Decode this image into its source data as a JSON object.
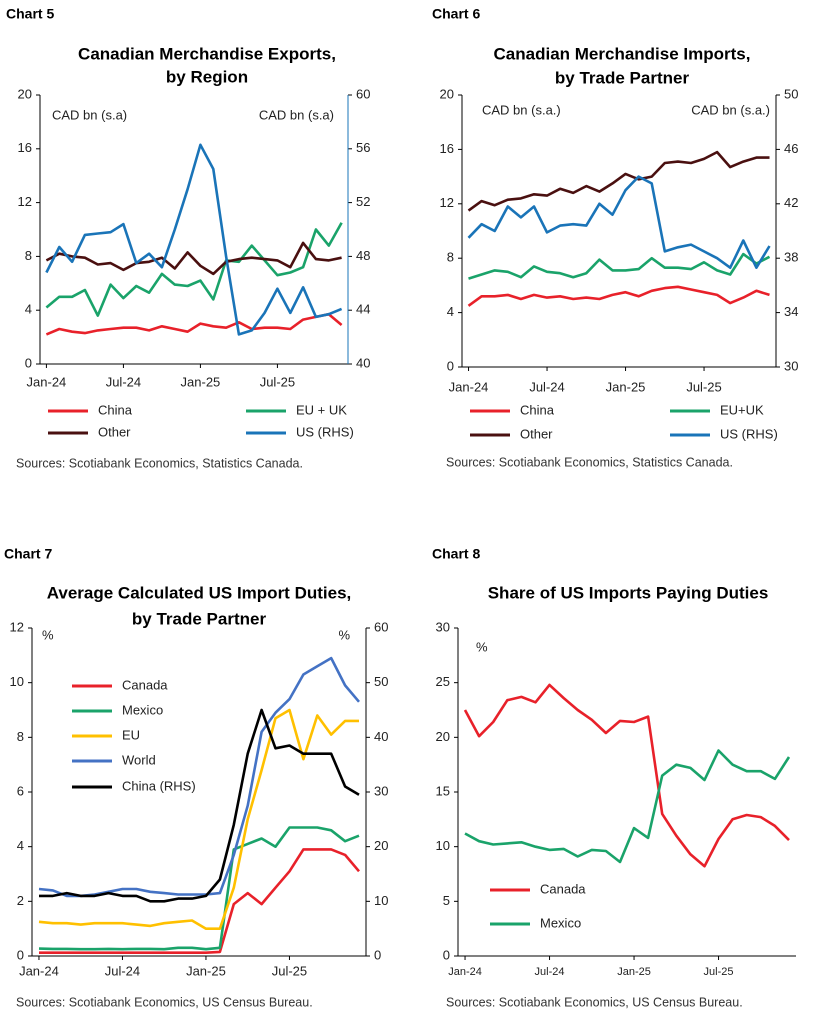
{
  "chart_data": [
    {
      "type": "line",
      "label": "Chart 5",
      "title": [
        "Canadian Merchandise Exports,",
        "by Region"
      ],
      "y_label": "CAD bn (s.a)",
      "y2_label": "CAD bn (s.a)",
      "categories": [
        "Jan-24",
        null,
        null,
        null,
        null,
        null,
        "Jul-24",
        null,
        null,
        null,
        null,
        null,
        "Jan-25",
        null,
        null,
        null,
        null,
        null,
        "Jul-25",
        null,
        null,
        null,
        null,
        null
      ],
      "ylim": [
        0,
        20
      ],
      "yticks": [
        0,
        4,
        8,
        12,
        16,
        20
      ],
      "y2lim": [
        40,
        60
      ],
      "y2ticks": [
        40,
        44,
        48,
        52,
        56,
        60
      ],
      "series": [
        {
          "name": "China",
          "color": "#e8212a",
          "values": [
            2.2,
            2.6,
            2.4,
            2.3,
            2.5,
            2.6,
            2.7,
            2.7,
            2.5,
            2.8,
            2.6,
            2.4,
            3.0,
            2.8,
            2.7,
            3.1,
            2.6,
            2.7,
            2.7,
            2.6,
            3.3,
            3.5,
            3.7,
            2.9
          ]
        },
        {
          "name": "EU + UK",
          "color": "#1aa36a",
          "values": [
            4.2,
            5.0,
            5.0,
            5.5,
            3.6,
            5.9,
            4.9,
            5.8,
            5.3,
            6.7,
            5.9,
            5.8,
            6.2,
            4.8,
            7.7,
            7.6,
            8.8,
            7.7,
            6.6,
            6.8,
            7.2,
            10.0,
            8.8,
            10.5
          ]
        },
        {
          "name": "Other",
          "color": "#4a1010",
          "values": [
            7.7,
            8.2,
            8.0,
            7.9,
            7.4,
            7.5,
            7.0,
            7.5,
            7.6,
            7.9,
            7.1,
            8.3,
            7.3,
            6.7,
            7.6,
            7.8,
            7.9,
            7.8,
            7.7,
            7.2,
            9.0,
            7.8,
            7.7,
            7.9
          ]
        },
        {
          "name": "US (RHS)",
          "color": "#1a74b8",
          "axis": "y2",
          "values": [
            46.8,
            48.7,
            47.6,
            49.6,
            49.7,
            49.8,
            50.4,
            47.5,
            48.2,
            47.2,
            50.0,
            53.0,
            56.3,
            54.5,
            48.0,
            42.2,
            42.5,
            43.8,
            45.6,
            43.8,
            45.7,
            43.5,
            43.7,
            44.1
          ]
        }
      ],
      "source": "Sources: Scotiabank Economics, Statistics Canada."
    },
    {
      "type": "line",
      "label": "Chart 6",
      "title": [
        "Canadian Merchandise Imports,",
        "by Trade Partner"
      ],
      "y_label": "CAD bn (s.a.)",
      "y2_label": "CAD bn (s.a.)",
      "categories": [
        "Jan-24",
        null,
        null,
        null,
        null,
        null,
        "Jul-24",
        null,
        null,
        null,
        null,
        null,
        "Jan-25",
        null,
        null,
        null,
        null,
        null,
        "Jul-25",
        null,
        null,
        null,
        null,
        null
      ],
      "ylim": [
        0,
        20
      ],
      "yticks": [
        0,
        4,
        8,
        12,
        16,
        20
      ],
      "y2lim": [
        30,
        50
      ],
      "y2ticks": [
        30,
        34,
        38,
        42,
        46,
        50
      ],
      "series": [
        {
          "name": "China",
          "color": "#e8212a",
          "values": [
            4.5,
            5.2,
            5.2,
            5.3,
            5.0,
            5.3,
            5.1,
            5.2,
            5.0,
            5.1,
            5.0,
            5.3,
            5.5,
            5.2,
            5.6,
            5.8,
            5.9,
            5.7,
            5.5,
            5.3,
            4.7,
            5.1,
            5.6,
            5.3
          ]
        },
        {
          "name": "EU+UK",
          "color": "#1aa36a",
          "values": [
            6.5,
            6.8,
            7.1,
            7.0,
            6.6,
            7.4,
            7.0,
            6.9,
            6.6,
            6.9,
            7.9,
            7.1,
            7.1,
            7.2,
            8.0,
            7.3,
            7.3,
            7.2,
            7.7,
            7.1,
            6.8,
            8.3,
            7.6,
            8.1
          ]
        },
        {
          "name": "Other",
          "color": "#4a1010",
          "values": [
            11.5,
            12.2,
            11.9,
            12.3,
            12.4,
            12.7,
            12.6,
            13.1,
            12.8,
            13.3,
            12.9,
            13.5,
            14.2,
            13.8,
            14.0,
            15.0,
            15.1,
            15.0,
            15.3,
            15.8,
            14.7,
            15.1,
            15.4,
            15.4
          ]
        },
        {
          "name": "US (RHS)",
          "color": "#1a74b8",
          "axis": "y2",
          "values": [
            39.5,
            40.5,
            40.0,
            41.8,
            41.0,
            41.8,
            39.9,
            40.4,
            40.5,
            40.4,
            42.0,
            41.2,
            43.0,
            44.0,
            43.5,
            38.5,
            38.8,
            39.0,
            38.5,
            38.0,
            37.3,
            39.3,
            37.3,
            38.9
          ]
        }
      ],
      "source": "Sources: Scotiabank Economics, Statistics Canada."
    },
    {
      "type": "line",
      "label": "Chart 7",
      "title": [
        "Average Calculated US Import Duties,",
        "by Trade Partner"
      ],
      "y_label": "%",
      "y2_label": "%",
      "categories": [
        "Jan-24",
        null,
        null,
        null,
        null,
        null,
        "Jul-24",
        null,
        null,
        null,
        null,
        null,
        "Jan-25",
        null,
        null,
        null,
        null,
        null,
        "Jul-25",
        null,
        null,
        null,
        null,
        null
      ],
      "ylim": [
        0,
        12
      ],
      "yticks": [
        0,
        2,
        4,
        6,
        8,
        10,
        12
      ],
      "y2lim": [
        0,
        60
      ],
      "y2ticks": [
        0,
        10,
        20,
        30,
        40,
        50,
        60
      ],
      "series": [
        {
          "name": "Canada",
          "color": "#e8212a",
          "values": [
            0.12,
            0.12,
            0.12,
            0.12,
            0.12,
            0.12,
            0.12,
            0.12,
            0.12,
            0.12,
            0.12,
            0.12,
            0.12,
            0.15,
            1.9,
            2.3,
            1.9,
            2.5,
            3.1,
            3.9,
            3.9,
            3.9,
            3.7,
            3.1
          ]
        },
        {
          "name": "Mexico",
          "color": "#1aa36a",
          "values": [
            0.27,
            0.26,
            0.26,
            0.25,
            0.25,
            0.26,
            0.25,
            0.26,
            0.26,
            0.25,
            0.3,
            0.3,
            0.25,
            0.3,
            3.9,
            4.1,
            4.3,
            4.0,
            4.7,
            4.7,
            4.7,
            4.6,
            4.2,
            4.4
          ]
        },
        {
          "name": "EU",
          "color": "#ffc000",
          "values": [
            1.25,
            1.2,
            1.2,
            1.15,
            1.2,
            1.2,
            1.2,
            1.15,
            1.1,
            1.2,
            1.25,
            1.3,
            1.0,
            1.0,
            2.5,
            5.0,
            6.8,
            8.7,
            9.0,
            7.2,
            8.8,
            8.1,
            8.6,
            8.6
          ]
        },
        {
          "name": "World",
          "color": "#4472c4",
          "values": [
            2.45,
            2.4,
            2.2,
            2.2,
            2.25,
            2.35,
            2.45,
            2.45,
            2.35,
            2.3,
            2.25,
            2.25,
            2.25,
            2.3,
            3.7,
            5.5,
            8.2,
            8.9,
            9.4,
            10.3,
            10.6,
            10.9,
            9.9,
            9.3
          ]
        },
        {
          "name": "China (RHS)",
          "color": "#000000",
          "axis": "y2",
          "values": [
            11,
            11,
            11.5,
            11,
            11,
            11.5,
            11,
            11,
            10,
            10,
            10.5,
            10.5,
            11,
            14,
            24,
            37,
            45,
            38,
            38.5,
            37,
            37,
            37,
            31,
            29.5
          ]
        }
      ],
      "source": "Sources: Scotiabank Economics, US Census Bureau."
    },
    {
      "type": "line",
      "label": "Chart 8",
      "title": [
        "Share of US Imports Paying Duties"
      ],
      "y_label": "%",
      "categories": [
        "Jan-24",
        null,
        null,
        null,
        null,
        null,
        "Jul-24",
        null,
        null,
        null,
        null,
        null,
        "Jan-25",
        null,
        null,
        null,
        null,
        null,
        "Jul-25",
        null,
        null,
        null,
        null,
        null
      ],
      "ylim": [
        0,
        30
      ],
      "yticks": [
        0,
        5,
        10,
        15,
        20,
        25,
        30
      ],
      "series": [
        {
          "name": "Canada",
          "color": "#e8212a",
          "values": [
            22.5,
            20.1,
            21.4,
            23.4,
            23.7,
            23.2,
            24.8,
            23.6,
            22.5,
            21.6,
            20.4,
            21.5,
            21.4,
            21.9,
            13.0,
            11.0,
            9.3,
            8.2,
            10.7,
            12.5,
            12.9,
            12.7,
            11.9,
            10.6
          ]
        },
        {
          "name": "Mexico",
          "color": "#1aa36a",
          "values": [
            11.2,
            10.5,
            10.2,
            10.3,
            10.4,
            10.0,
            9.7,
            9.8,
            9.1,
            9.7,
            9.6,
            8.6,
            11.7,
            10.8,
            16.5,
            17.5,
            17.2,
            16.1,
            18.8,
            17.5,
            16.9,
            16.9,
            16.2,
            18.2
          ]
        }
      ],
      "source": "Sources: Scotiabank Economics, US Census Bureau."
    }
  ]
}
